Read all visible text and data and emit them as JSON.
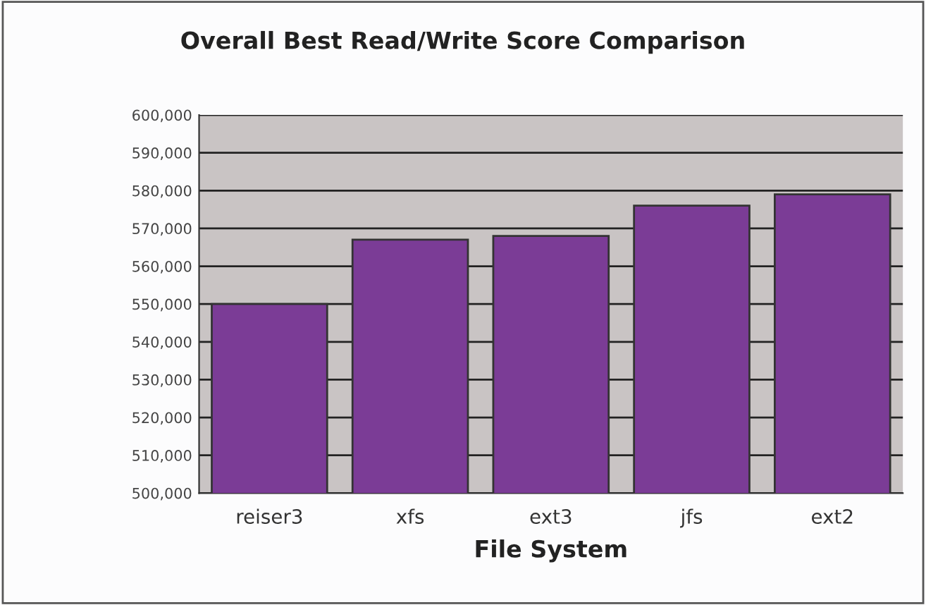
{
  "chart_data": {
    "type": "bar",
    "title": "Overall Best Read/Write Score Comparison",
    "xlabel": "File System",
    "categories": [
      "reiser3",
      "xfs",
      "ext3",
      "jfs",
      "ext2"
    ],
    "values": [
      550000,
      567000,
      568000,
      576000,
      579000
    ],
    "color": "#7b3c96",
    "ylim": [
      500000,
      600000
    ],
    "yticks": [
      {
        "value": 500000,
        "label": "500,000"
      },
      {
        "value": 510000,
        "label": "510,000"
      },
      {
        "value": 520000,
        "label": "520,000"
      },
      {
        "value": 530000,
        "label": "530,000"
      },
      {
        "value": 540000,
        "label": "540,000"
      },
      {
        "value": 550000,
        "label": "550,000"
      },
      {
        "value": 560000,
        "label": "560,000"
      },
      {
        "value": 570000,
        "label": "570,000"
      },
      {
        "value": 580000,
        "label": "580,000"
      },
      {
        "value": 590000,
        "label": "590,000"
      },
      {
        "value": 600000,
        "label": "600,000"
      }
    ],
    "grid": "y"
  }
}
